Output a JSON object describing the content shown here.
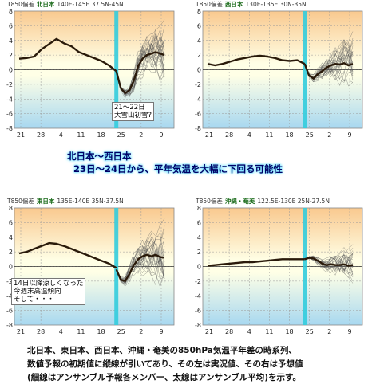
{
  "headline": {
    "line1": "北日本〜西日本",
    "line2": "23日〜24日から、平年気温を大幅に下回る可能性"
  },
  "caption": {
    "line1": "北日本、東日本、西日本、沖縄・奄美の850hPa気温平年差の時系列、",
    "line2": "数値予報の初期値に縦線が引いてあり、その左は実況値、その右は予想値",
    "line3": "(細線はアンサンブル予報各メンバー、太線はアンサンブル平均)を示す。"
  },
  "colors": {
    "warm_top": "#f9c98f",
    "neutral": "#ffffe6",
    "cool_bottom": "#a8d8f0",
    "init_line": "#33ccdd",
    "mean_line": "#2a1a0a",
    "member_line": "#555555"
  },
  "chart_data": [
    {
      "type": "line",
      "panel": "north",
      "title_prefix": "T850偏差",
      "region": "北日本",
      "range": "140E-145E  37.5N-45N",
      "x_ticks": [
        "21",
        "28",
        "4",
        "11",
        "18",
        "25",
        "2",
        "9"
      ],
      "y_ticks": [
        8,
        6,
        4,
        2,
        0,
        -2,
        -4,
        -6,
        -8
      ],
      "ylim": [
        -8,
        8
      ],
      "init_tick_index": 5,
      "observed": [
        1.5,
        1.6,
        1.8,
        2.8,
        3.5,
        4.2,
        3.6,
        3.2,
        2.4,
        2.0,
        1.6,
        1.2,
        0.6,
        -0.2
      ],
      "forecast_mean": [
        -0.2,
        -2.5,
        -3.2,
        -2.8,
        -1.5,
        0.5,
        1.5,
        2.0,
        2.2,
        2.4,
        2.2,
        2.0
      ],
      "spread": 3.2,
      "annotation": {
        "line1": "21〜22日",
        "line2": "大雪山初雪?"
      }
    },
    {
      "type": "line",
      "panel": "west",
      "title_prefix": "T850偏差",
      "region": "西日本",
      "range": "130E-135E  30N-35N",
      "x_ticks": [
        "21",
        "28",
        "4",
        "11",
        "18",
        "25",
        "2",
        "9"
      ],
      "y_ticks": [
        8,
        6,
        4,
        2,
        0,
        -2,
        -4,
        -6,
        -8
      ],
      "ylim": [
        -8,
        8
      ],
      "init_tick_index": 5,
      "observed": [
        0.8,
        0.6,
        0.8,
        1.1,
        1.4,
        1.6,
        1.8,
        1.9,
        1.8,
        1.6,
        1.3,
        1.2,
        1.3,
        0.8
      ],
      "forecast_mean": [
        0.8,
        -0.8,
        -1.2,
        -0.6,
        -0.2,
        0.3,
        0.6,
        0.8,
        0.7,
        0.9,
        0.6,
        0.8
      ],
      "spread": 2.8
    },
    {
      "type": "line",
      "panel": "east",
      "title_prefix": "T850偏差",
      "region": "東日本",
      "range": "135E-140E  35N-37.5N",
      "x_ticks": [
        "21",
        "28",
        "4",
        "11",
        "18",
        "25",
        "2",
        "9"
      ],
      "y_ticks": [
        8,
        6,
        4,
        2,
        0,
        -2,
        -4,
        -6,
        -8
      ],
      "ylim": [
        -8,
        8
      ],
      "init_tick_index": 5,
      "observed": [
        1.8,
        2.0,
        2.4,
        2.8,
        3.2,
        3.1,
        2.8,
        2.4,
        2.0,
        1.6,
        1.2,
        0.8,
        0.4,
        -0.2
      ],
      "forecast_mean": [
        -0.4,
        -1.8,
        -2.0,
        -1.0,
        0.2,
        1.0,
        1.4,
        1.6,
        1.4,
        1.6,
        1.3,
        1.2
      ],
      "spread": 3.4,
      "annotation": {
        "line1": "14日以降涼しくなった",
        "line2": "今週末高温傾向",
        "line3": "そして・・・"
      }
    },
    {
      "type": "line",
      "panel": "okinawa",
      "title_prefix": "T850偏差",
      "region": "沖縄・奄美",
      "range": "122.5E-130E  25N-27.5N",
      "x_ticks": [
        "21",
        "28",
        "4",
        "11",
        "18",
        "25",
        "2",
        "9"
      ],
      "y_ticks": [
        8,
        6,
        4,
        2,
        0,
        -2,
        -4,
        -6,
        -8
      ],
      "ylim": [
        -8,
        8
      ],
      "init_tick_index": 5,
      "observed": [
        0.1,
        0.2,
        0.3,
        0.4,
        0.5,
        0.6,
        0.6,
        0.7,
        0.8,
        0.9,
        1.0,
        1.0,
        1.0,
        1.0
      ],
      "forecast_mean": [
        1.0,
        1.2,
        1.1,
        0.8,
        0.4,
        0.2,
        0.3,
        0.2,
        0.2,
        0.3,
        0.1,
        0.2
      ],
      "spread": 1.8
    }
  ]
}
